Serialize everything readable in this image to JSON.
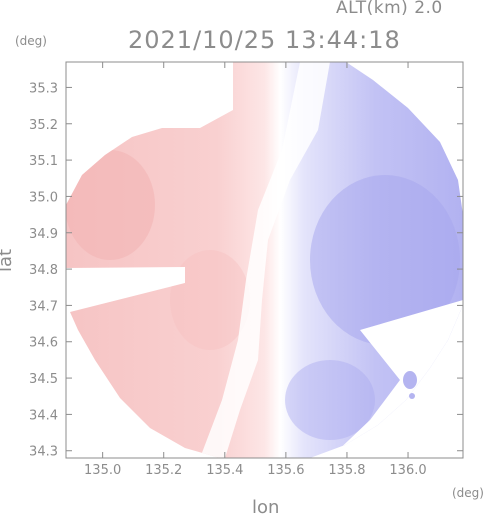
{
  "header": {
    "altitude_label": "ALT(km) 2.0",
    "timestamp": "2021/10/25 13:44:18"
  },
  "axes": {
    "x_label": "lon",
    "y_label": "lat",
    "x_unit": "(deg)",
    "y_unit": "(deg)",
    "x_ticks": [
      "135.0",
      "135.2",
      "135.4",
      "135.6",
      "135.8",
      "136.0"
    ],
    "y_ticks": [
      "35.3",
      "35.2",
      "35.1",
      "35.0",
      "34.9",
      "34.8",
      "34.7",
      "34.6",
      "34.5",
      "34.4",
      "34.3"
    ],
    "x_range": [
      134.88,
      136.18
    ],
    "y_range": [
      34.28,
      35.37
    ]
  },
  "colors": {
    "axis": "#8c8c8c",
    "positive_shade": "#f4b8b8",
    "light_positive": "#fbdada",
    "neutral": "#ffffff",
    "light_negative": "#dcdcfa",
    "negative_shade": "#a9a9ef"
  }
}
